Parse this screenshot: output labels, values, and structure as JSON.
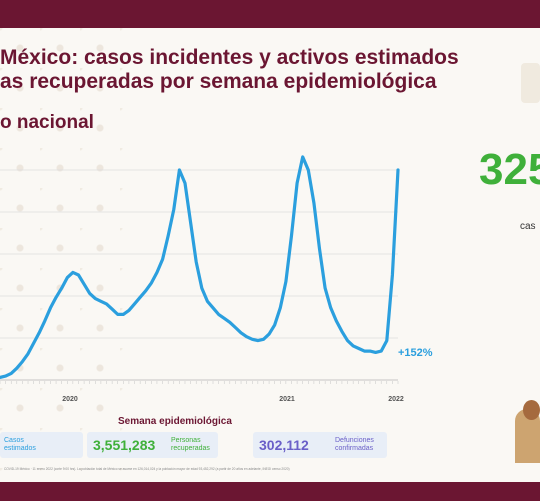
{
  "header": {
    "title_line1": "México: casos incidentes y activos estimados",
    "title_line2": "as recuperadas por semana epidemiológica",
    "subtitle": "o nacional"
  },
  "side": {
    "big_number": "325",
    "big_label": "cas"
  },
  "stats": {
    "estimated_label": "Casos\nestimados",
    "recovered_value": "3,551,283",
    "recovered_label": "Personas\nrecuperadas",
    "deaths_value": "302,112",
    "deaths_label": "Defunciones\nconfirmadas"
  },
  "footnote": "COVID-19 México · 11 enero 2022 (corte 9:00 hrs). La población total de México se asume en 126,014,024 y la población mayor de edad 93,452,292 (a partir de 20 años en adelante, INEGI censo 2020)",
  "colors": {
    "brand": "#6b1632",
    "series": "#2b9fde",
    "accent": "#3fb03a"
  },
  "chart_data": {
    "type": "line",
    "xlabel": "Semana epidemiológica",
    "year_labels": [
      "2020",
      "2021",
      "2022"
    ],
    "annotation": "+152%",
    "grid": true,
    "series": [
      {
        "values": [
          2,
          3,
          5,
          9,
          14,
          20,
          28,
          36,
          45,
          55,
          63,
          70,
          78,
          82,
          80,
          73,
          66,
          62,
          60,
          58,
          54,
          50,
          50,
          53,
          58,
          63,
          68,
          74,
          82,
          92,
          110,
          130,
          160,
          150,
          120,
          90,
          70,
          60,
          55,
          50,
          47,
          44,
          40,
          36,
          33,
          31,
          30,
          31,
          35,
          42,
          55,
          75,
          110,
          150,
          170,
          160,
          135,
          100,
          70,
          55,
          45,
          37,
          30,
          26,
          24,
          22,
          22,
          21,
          22,
          30,
          80,
          160
        ]
      }
    ]
  }
}
